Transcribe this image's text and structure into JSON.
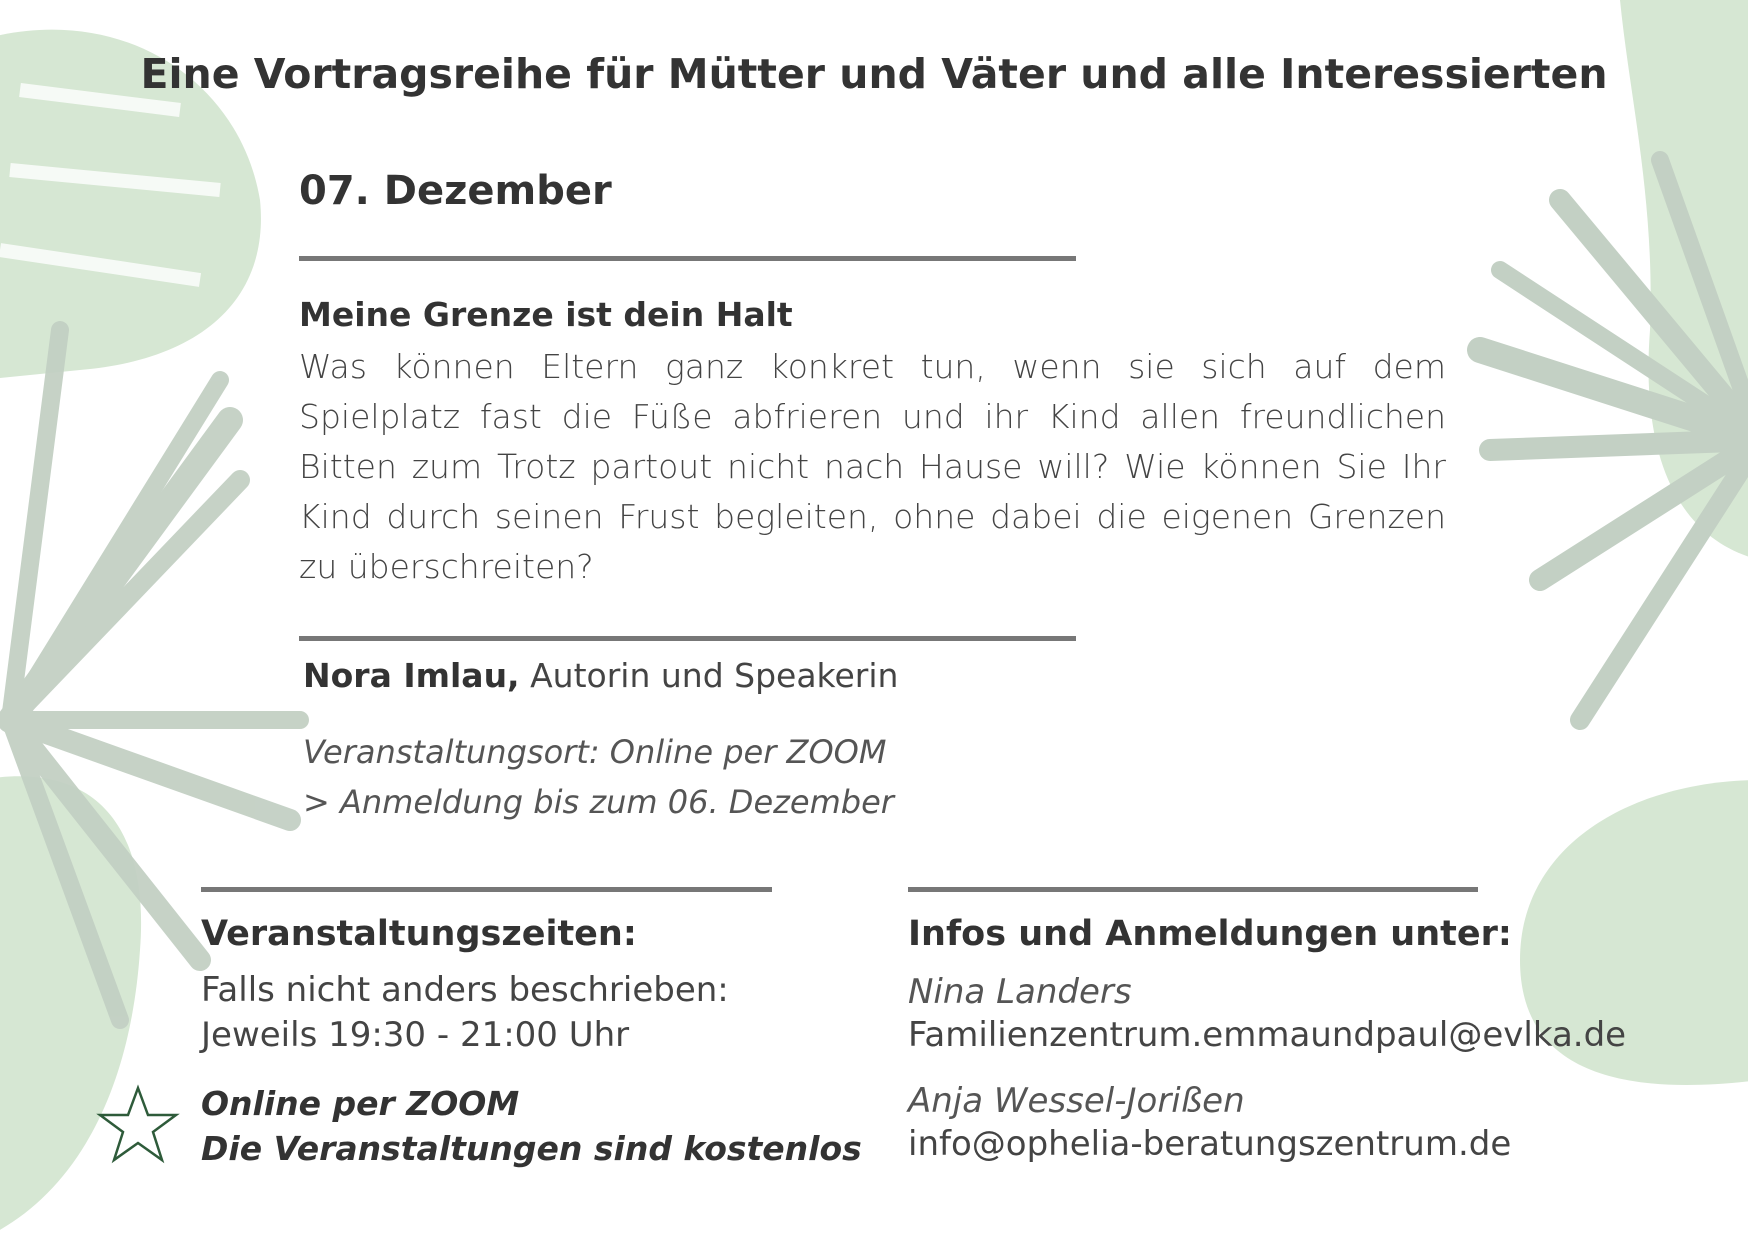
{
  "title": "Eine Vortragsreihe für Mütter und Väter und alle Interessierten",
  "event": {
    "date": "07. Dezember",
    "heading": "Meine Grenze ist dein Halt",
    "description": "Was können Eltern ganz konkret tun, wenn sie sich auf dem Spielplatz fast die Füße abfrieren und ihr Kind allen freundlichen Bitten zum Trotz partout nicht nach Hause will? Wie können Sie Ihr Kind durch seinen Frust begleiten, ohne dabei die eigenen Grenzen zu überschreiten?",
    "speaker_name": "Nora Imlau,",
    "speaker_role": "Autorin und Speakerin",
    "location": "Veranstaltungsort: Online per ZOOM",
    "registration": "> Anmeldung bis zum 06. Dezember"
  },
  "times": {
    "heading": "Veranstaltungszeiten:",
    "line1": "Falls nicht anders beschrieben:",
    "line2": "Jeweils 19:30 - 21:00 Uhr",
    "note1": "Online per ZOOM",
    "note2": "Die Veranstaltungen sind kostenlos",
    "icon": "star-icon"
  },
  "contact": {
    "heading": "Infos und Anmeldungen unter:",
    "persons": [
      {
        "name": "Nina Landers",
        "email": "Familienzentrum.emmaundpaul@evlka.de"
      },
      {
        "name": "Anja Wessel-Jorißen",
        "email": "info@ophelia-beratungszentrum.de"
      }
    ]
  },
  "colors": {
    "leaf_light": "#d6e7d3",
    "leaf_grey": "#c3d0c4",
    "text": "#333333",
    "rule": "#777777",
    "star": "#2e5b3a"
  }
}
